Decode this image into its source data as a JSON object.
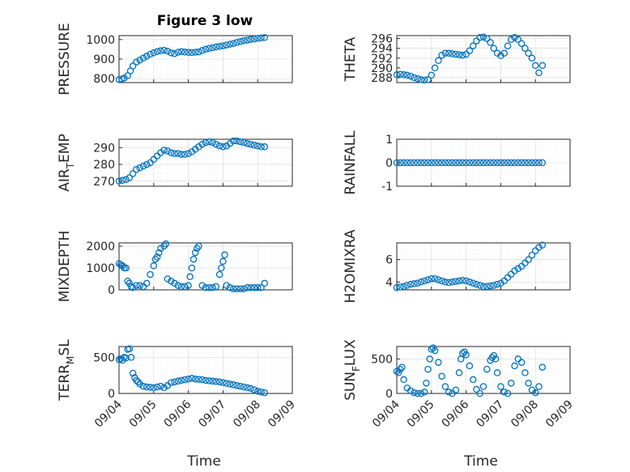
{
  "figure": {
    "title": "Figure 3 low",
    "marker_color": "#0072BD",
    "x_tick_labels": [
      "09/04",
      "09/05",
      "09/06",
      "09/07",
      "09/08",
      "09/09"
    ],
    "x_label": "Time"
  },
  "chart_data": [
    {
      "type": "scatter",
      "ylabel": "PRESSURE",
      "ylim": [
        780,
        1020
      ],
      "yticks": [
        800,
        900,
        1000
      ],
      "xlim": [
        "09/04",
        "09/09"
      ],
      "grid": true,
      "x": [
        0.0,
        0.08,
        0.15,
        0.25,
        0.33,
        0.4,
        0.5,
        0.6,
        0.7,
        0.8,
        0.9,
        1.0,
        1.1,
        1.2,
        1.3,
        1.4,
        1.5,
        1.6,
        1.7,
        1.8,
        1.9,
        2.0,
        2.1,
        2.2,
        2.3,
        2.4,
        2.5,
        2.6,
        2.7,
        2.8,
        2.9,
        3.0,
        3.1,
        3.2,
        3.3,
        3.4,
        3.5,
        3.6,
        3.7,
        3.8,
        3.9,
        4.0,
        4.1,
        4.2
      ],
      "y": [
        795,
        798,
        803,
        815,
        840,
        865,
        885,
        895,
        905,
        915,
        925,
        932,
        938,
        942,
        945,
        940,
        932,
        928,
        935,
        938,
        936,
        934,
        933,
        935,
        937,
        944,
        950,
        955,
        958,
        962,
        965,
        968,
        972,
        976,
        980,
        985,
        990,
        994,
        997,
        1000,
        1003,
        1006,
        1008,
        1010
      ]
    },
    {
      "type": "scatter",
      "ylabel": "THETA",
      "ylim": [
        287,
        296.6
      ],
      "yticks": [
        288,
        290,
        292,
        294,
        296
      ],
      "xlim": [
        "09/04",
        "09/09"
      ],
      "grid": true,
      "x": [
        0.0,
        0.1,
        0.2,
        0.3,
        0.4,
        0.5,
        0.6,
        0.7,
        0.8,
        0.9,
        1.0,
        1.1,
        1.2,
        1.3,
        1.4,
        1.5,
        1.6,
        1.7,
        1.8,
        1.9,
        2.0,
        2.1,
        2.2,
        2.3,
        2.4,
        2.5,
        2.6,
        2.7,
        2.8,
        2.9,
        3.0,
        3.1,
        3.2,
        3.3,
        3.4,
        3.5,
        3.6,
        3.7,
        3.8,
        3.9,
        4.0,
        4.1,
        4.2
      ],
      "y": [
        288.6,
        288.7,
        288.6,
        288.5,
        288.3,
        288.0,
        287.8,
        287.6,
        287.5,
        287.6,
        288.5,
        290.0,
        291.5,
        292.6,
        293.0,
        293.0,
        292.9,
        292.8,
        292.7,
        292.6,
        292.8,
        293.5,
        294.5,
        295.5,
        296.2,
        296.3,
        296.0,
        295.2,
        294.0,
        293.0,
        292.5,
        293.0,
        294.5,
        295.8,
        296.2,
        295.8,
        295.0,
        294.0,
        293.0,
        292.0,
        290.5,
        289.0,
        290.5
      ]
    },
    {
      "type": "scatter",
      "ylabel": "AIR_TEMP",
      "ylabel_text": "AIR",
      "ylabel_sub": "T",
      "ylabel_tail": "EMP",
      "ylim": [
        267,
        295
      ],
      "yticks": [
        270,
        280,
        290
      ],
      "xlim": [
        "09/04",
        "09/09"
      ],
      "grid": true,
      "x": [
        0.0,
        0.1,
        0.2,
        0.3,
        0.4,
        0.5,
        0.6,
        0.7,
        0.8,
        0.9,
        1.0,
        1.1,
        1.2,
        1.3,
        1.4,
        1.5,
        1.6,
        1.7,
        1.8,
        1.9,
        2.0,
        2.1,
        2.2,
        2.3,
        2.4,
        2.5,
        2.6,
        2.7,
        2.8,
        2.9,
        3.0,
        3.1,
        3.2,
        3.3,
        3.4,
        3.5,
        3.6,
        3.7,
        3.8,
        3.9,
        4.0,
        4.1,
        4.2
      ],
      "y": [
        270,
        270.5,
        271,
        272,
        274.5,
        277,
        278,
        279,
        280,
        281,
        283,
        285,
        287,
        288.5,
        288,
        287,
        286.5,
        286.5,
        286,
        286,
        286.5,
        287.5,
        289,
        290.5,
        292,
        293,
        293.5,
        293,
        292,
        291,
        290.5,
        291,
        292.5,
        294,
        294,
        293.5,
        293,
        292.5,
        292,
        291.5,
        291,
        290.5,
        290.5
      ]
    },
    {
      "type": "scatter",
      "ylabel": "RAINFALL",
      "ylim": [
        -1,
        1
      ],
      "yticks": [
        -1,
        0,
        1
      ],
      "xlim": [
        "09/04",
        "09/09"
      ],
      "grid": true,
      "x": [
        0.0,
        0.1,
        0.2,
        0.3,
        0.4,
        0.5,
        0.6,
        0.7,
        0.8,
        0.9,
        1.0,
        1.1,
        1.2,
        1.3,
        1.4,
        1.5,
        1.6,
        1.7,
        1.8,
        1.9,
        2.0,
        2.1,
        2.2,
        2.3,
        2.4,
        2.5,
        2.6,
        2.7,
        2.8,
        2.9,
        3.0,
        3.1,
        3.2,
        3.3,
        3.4,
        3.5,
        3.6,
        3.7,
        3.8,
        3.9,
        4.0,
        4.1,
        4.2
      ],
      "y": [
        0,
        0,
        0,
        0,
        0,
        0,
        0,
        0,
        0,
        0,
        0,
        0,
        0,
        0,
        0,
        0,
        0,
        0,
        0,
        0,
        0,
        0,
        0,
        0,
        0,
        0,
        0,
        0,
        0,
        0,
        0,
        0,
        0,
        0,
        0,
        0,
        0,
        0,
        0,
        0,
        0,
        0,
        0
      ]
    },
    {
      "type": "scatter",
      "ylabel": "MIXDEPTH",
      "ylim": [
        0,
        2150
      ],
      "yticks": [
        0,
        1000,
        2000
      ],
      "xlim": [
        "09/04",
        "09/09"
      ],
      "grid": true,
      "x": [
        0.0,
        0.05,
        0.1,
        0.15,
        0.2,
        0.25,
        0.3,
        0.35,
        0.4,
        0.5,
        0.6,
        0.7,
        0.8,
        0.9,
        1.0,
        1.05,
        1.1,
        1.15,
        1.2,
        1.3,
        1.35,
        1.4,
        1.5,
        1.6,
        1.7,
        1.8,
        1.9,
        2.0,
        2.05,
        2.1,
        2.15,
        2.2,
        2.25,
        2.3,
        2.4,
        2.5,
        2.6,
        2.7,
        2.8,
        2.9,
        2.95,
        3.0,
        3.05,
        3.1,
        3.2,
        3.3,
        3.4,
        3.5,
        3.6,
        3.7,
        3.8,
        3.9,
        4.0,
        4.1,
        4.2
      ],
      "y": [
        1200,
        1150,
        1100,
        1000,
        1000,
        400,
        300,
        150,
        100,
        200,
        200,
        150,
        300,
        700,
        1100,
        1400,
        1500,
        1700,
        1900,
        2000,
        2100,
        500,
        400,
        300,
        200,
        150,
        150,
        200,
        600,
        1000,
        1400,
        1700,
        1900,
        2000,
        200,
        100,
        100,
        100,
        150,
        700,
        1000,
        1300,
        1600,
        200,
        100,
        50,
        50,
        50,
        50,
        100,
        100,
        100,
        100,
        100,
        300
      ]
    },
    {
      "type": "scatter",
      "ylabel": "H2OMIXRA",
      "ylim": [
        3.3,
        7.5
      ],
      "yticks": [
        4,
        6
      ],
      "xlim": [
        "09/04",
        "09/09"
      ],
      "grid": true,
      "x": [
        0.0,
        0.1,
        0.2,
        0.3,
        0.4,
        0.5,
        0.6,
        0.7,
        0.8,
        0.9,
        1.0,
        1.1,
        1.2,
        1.3,
        1.4,
        1.5,
        1.6,
        1.7,
        1.8,
        1.9,
        2.0,
        2.1,
        2.2,
        2.3,
        2.4,
        2.5,
        2.6,
        2.7,
        2.8,
        2.9,
        3.0,
        3.1,
        3.2,
        3.3,
        3.4,
        3.5,
        3.6,
        3.7,
        3.8,
        3.9,
        4.0,
        4.1,
        4.2
      ],
      "y": [
        3.5,
        3.55,
        3.6,
        3.7,
        3.8,
        3.85,
        3.9,
        4.0,
        4.1,
        4.2,
        4.3,
        4.3,
        4.2,
        4.1,
        4.0,
        3.95,
        4.0,
        4.05,
        4.1,
        4.15,
        4.1,
        4.0,
        3.9,
        3.8,
        3.7,
        3.6,
        3.6,
        3.65,
        3.7,
        3.8,
        3.9,
        4.1,
        4.4,
        4.7,
        5.0,
        5.2,
        5.4,
        5.7,
        6.0,
        6.4,
        6.8,
        7.1,
        7.3
      ]
    },
    {
      "type": "scatter",
      "ylabel": "TERR_MSL",
      "ylabel_text": "TERR",
      "ylabel_sub": "M",
      "ylabel_tail": "SL",
      "ylim": [
        0,
        650
      ],
      "yticks": [
        0,
        500
      ],
      "xlim": [
        "09/04",
        "09/09"
      ],
      "grid": true,
      "x": [
        0.0,
        0.05,
        0.1,
        0.15,
        0.2,
        0.25,
        0.3,
        0.35,
        0.4,
        0.45,
        0.5,
        0.55,
        0.6,
        0.7,
        0.8,
        0.9,
        1.0,
        1.1,
        1.2,
        1.3,
        1.4,
        1.5,
        1.6,
        1.7,
        1.8,
        1.9,
        2.0,
        2.1,
        2.2,
        2.3,
        2.4,
        2.5,
        2.6,
        2.7,
        2.8,
        2.9,
        3.0,
        3.1,
        3.2,
        3.3,
        3.4,
        3.5,
        3.6,
        3.7,
        3.8,
        3.9,
        4.0,
        4.1,
        4.2
      ],
      "y": [
        470,
        480,
        460,
        500,
        490,
        610,
        620,
        500,
        280,
        220,
        180,
        160,
        130,
        100,
        90,
        85,
        80,
        90,
        100,
        80,
        110,
        150,
        160,
        170,
        180,
        190,
        200,
        210,
        200,
        195,
        190,
        180,
        175,
        170,
        165,
        160,
        150,
        140,
        130,
        120,
        110,
        100,
        90,
        80,
        70,
        50,
        30,
        20,
        10
      ]
    },
    {
      "type": "scatter",
      "ylabel": "SUN_FLUX",
      "ylabel_text": "SUN",
      "ylabel_sub": "F",
      "ylabel_tail": "LUX",
      "ylim": [
        0,
        680
      ],
      "yticks": [
        0,
        500
      ],
      "xlim": [
        "09/04",
        "09/09"
      ],
      "grid": true,
      "x": [
        0.0,
        0.05,
        0.1,
        0.15,
        0.2,
        0.3,
        0.4,
        0.5,
        0.6,
        0.7,
        0.8,
        0.85,
        0.9,
        0.95,
        1.0,
        1.05,
        1.1,
        1.2,
        1.3,
        1.4,
        1.5,
        1.6,
        1.7,
        1.8,
        1.85,
        1.9,
        1.95,
        2.0,
        2.1,
        2.2,
        2.3,
        2.4,
        2.5,
        2.6,
        2.7,
        2.75,
        2.8,
        2.85,
        2.9,
        3.0,
        3.1,
        3.2,
        3.3,
        3.4,
        3.5,
        3.6,
        3.7,
        3.8,
        3.9,
        4.0,
        4.1,
        4.2
      ],
      "y": [
        320,
        300,
        350,
        380,
        200,
        80,
        40,
        10,
        0,
        0,
        20,
        150,
        350,
        500,
        640,
        660,
        620,
        450,
        250,
        100,
        20,
        0,
        50,
        300,
        500,
        580,
        600,
        560,
        400,
        200,
        60,
        0,
        100,
        350,
        480,
        520,
        550,
        500,
        300,
        100,
        20,
        0,
        150,
        400,
        500,
        450,
        300,
        150,
        50,
        10,
        100,
        380
      ]
    }
  ]
}
